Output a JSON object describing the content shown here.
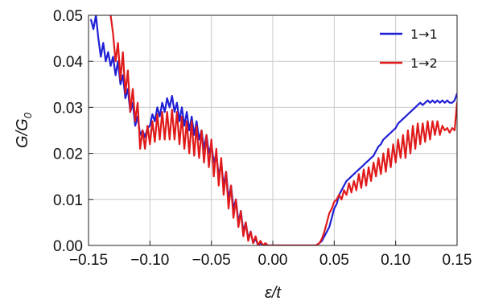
{
  "chart_data": {
    "type": "line",
    "xlabel": "ε/t",
    "ylabel": "G/G",
    "ylabel_subscript": "0",
    "xlim": [
      -0.15,
      0.15
    ],
    "ylim": [
      0.0,
      0.05
    ],
    "x_ticks": [
      -0.15,
      -0.1,
      -0.05,
      0.0,
      0.05,
      0.1,
      0.15
    ],
    "x_tick_labels": [
      "−0.15",
      "−0.10",
      "−0.05",
      "0.00",
      "0.05",
      "0.10",
      "0.15"
    ],
    "y_ticks": [
      0.0,
      0.01,
      0.02,
      0.03,
      0.04,
      0.05
    ],
    "y_tick_labels": [
      "0.00",
      "0.01",
      "0.02",
      "0.03",
      "0.04",
      "0.05"
    ],
    "grid": true,
    "legend_position": "top-right",
    "series": [
      {
        "name": "1→1",
        "color": "#1f1fd6",
        "x": [
          -0.148,
          -0.146,
          -0.144,
          -0.142,
          -0.14,
          -0.138,
          -0.136,
          -0.134,
          -0.132,
          -0.13,
          -0.128,
          -0.126,
          -0.124,
          -0.122,
          -0.12,
          -0.118,
          -0.116,
          -0.114,
          -0.112,
          -0.11,
          -0.108,
          -0.106,
          -0.104,
          -0.102,
          -0.1,
          -0.098,
          -0.096,
          -0.094,
          -0.092,
          -0.09,
          -0.088,
          -0.086,
          -0.084,
          -0.082,
          -0.08,
          -0.078,
          -0.076,
          -0.074,
          -0.072,
          -0.07,
          -0.068,
          -0.066,
          -0.064,
          -0.062,
          -0.06,
          -0.058,
          -0.056,
          -0.054,
          -0.052,
          -0.05,
          -0.048,
          -0.046,
          -0.044,
          -0.042,
          -0.04,
          -0.038,
          -0.036,
          -0.034,
          -0.032,
          -0.03,
          -0.028,
          -0.026,
          -0.024,
          -0.022,
          -0.02,
          -0.018,
          -0.016,
          -0.014,
          -0.012,
          -0.01,
          -0.008,
          -0.006,
          -0.004,
          -0.002,
          0.0,
          0.005,
          0.01,
          0.015,
          0.02,
          0.025,
          0.03,
          0.035,
          0.038,
          0.04,
          0.042,
          0.044,
          0.046,
          0.048,
          0.05,
          0.052,
          0.054,
          0.056,
          0.058,
          0.06,
          0.062,
          0.064,
          0.066,
          0.068,
          0.07,
          0.072,
          0.074,
          0.076,
          0.078,
          0.08,
          0.082,
          0.084,
          0.086,
          0.088,
          0.09,
          0.092,
          0.094,
          0.096,
          0.098,
          0.1,
          0.102,
          0.104,
          0.106,
          0.108,
          0.11,
          0.112,
          0.114,
          0.116,
          0.118,
          0.12,
          0.122,
          0.124,
          0.126,
          0.128,
          0.13,
          0.132,
          0.134,
          0.136,
          0.138,
          0.14,
          0.142,
          0.144,
          0.146,
          0.148,
          0.15
        ],
        "y": [
          0.049,
          0.047,
          0.05,
          0.045,
          0.041,
          0.044,
          0.04,
          0.042,
          0.039,
          0.041,
          0.037,
          0.04,
          0.035,
          0.037,
          0.032,
          0.034,
          0.029,
          0.031,
          0.026,
          0.028,
          0.024,
          0.025,
          0.0235,
          0.0255,
          0.026,
          0.0285,
          0.027,
          0.03,
          0.028,
          0.031,
          0.029,
          0.032,
          0.03,
          0.0325,
          0.029,
          0.031,
          0.027,
          0.03,
          0.026,
          0.029,
          0.025,
          0.028,
          0.024,
          0.027,
          0.023,
          0.025,
          0.021,
          0.024,
          0.02,
          0.022,
          0.018,
          0.02,
          0.015,
          0.018,
          0.013,
          0.016,
          0.01,
          0.013,
          0.008,
          0.01,
          0.005,
          0.0075,
          0.003,
          0.005,
          0.0015,
          0.003,
          0.0005,
          0.0015,
          0.0,
          0.0005,
          0.0,
          0.0,
          0.0,
          0.0,
          0.0,
          0.0,
          0.0,
          0.0,
          0.0,
          0.0,
          0.0,
          0.0,
          0.0005,
          0.001,
          0.002,
          0.003,
          0.004,
          0.006,
          0.008,
          0.009,
          0.011,
          0.012,
          0.013,
          0.014,
          0.0145,
          0.015,
          0.0155,
          0.016,
          0.0165,
          0.017,
          0.0175,
          0.018,
          0.0185,
          0.019,
          0.0195,
          0.0205,
          0.0215,
          0.022,
          0.023,
          0.0235,
          0.024,
          0.0245,
          0.025,
          0.0255,
          0.0265,
          0.027,
          0.0275,
          0.028,
          0.0285,
          0.029,
          0.0295,
          0.03,
          0.0305,
          0.031,
          0.0305,
          0.031,
          0.0315,
          0.031,
          0.0315,
          0.031,
          0.0315,
          0.031,
          0.0315,
          0.031,
          0.0315,
          0.031,
          0.031,
          0.0315,
          0.033
        ]
      },
      {
        "name": "1→2",
        "color": "#e01a1a",
        "x": [
          -0.132,
          -0.13,
          -0.128,
          -0.126,
          -0.124,
          -0.122,
          -0.12,
          -0.118,
          -0.116,
          -0.114,
          -0.112,
          -0.11,
          -0.108,
          -0.106,
          -0.104,
          -0.102,
          -0.1,
          -0.098,
          -0.096,
          -0.094,
          -0.092,
          -0.09,
          -0.088,
          -0.086,
          -0.084,
          -0.082,
          -0.08,
          -0.078,
          -0.076,
          -0.074,
          -0.072,
          -0.07,
          -0.068,
          -0.066,
          -0.064,
          -0.062,
          -0.06,
          -0.058,
          -0.056,
          -0.054,
          -0.052,
          -0.05,
          -0.048,
          -0.046,
          -0.044,
          -0.042,
          -0.04,
          -0.038,
          -0.036,
          -0.034,
          -0.032,
          -0.03,
          -0.028,
          -0.026,
          -0.024,
          -0.022,
          -0.02,
          -0.018,
          -0.016,
          -0.014,
          -0.012,
          -0.01,
          -0.008,
          -0.006,
          -0.004,
          -0.002,
          0.0,
          0.005,
          0.01,
          0.015,
          0.02,
          0.025,
          0.03,
          0.035,
          0.038,
          0.04,
          0.042,
          0.044,
          0.046,
          0.048,
          0.05,
          0.052,
          0.054,
          0.056,
          0.058,
          0.06,
          0.062,
          0.064,
          0.066,
          0.068,
          0.07,
          0.072,
          0.074,
          0.076,
          0.078,
          0.08,
          0.082,
          0.084,
          0.086,
          0.088,
          0.09,
          0.092,
          0.094,
          0.096,
          0.098,
          0.1,
          0.102,
          0.104,
          0.106,
          0.108,
          0.11,
          0.112,
          0.114,
          0.116,
          0.118,
          0.12,
          0.122,
          0.124,
          0.126,
          0.128,
          0.13,
          0.132,
          0.134,
          0.136,
          0.138,
          0.14,
          0.142,
          0.144,
          0.146,
          0.148,
          0.15
        ],
        "y": [
          0.05,
          0.046,
          0.04,
          0.044,
          0.036,
          0.042,
          0.033,
          0.038,
          0.029,
          0.034,
          0.027,
          0.031,
          0.021,
          0.025,
          0.021,
          0.026,
          0.022,
          0.027,
          0.0225,
          0.0285,
          0.023,
          0.029,
          0.023,
          0.029,
          0.023,
          0.0295,
          0.023,
          0.029,
          0.022,
          0.028,
          0.021,
          0.027,
          0.02,
          0.027,
          0.0195,
          0.026,
          0.019,
          0.025,
          0.018,
          0.024,
          0.017,
          0.023,
          0.015,
          0.021,
          0.013,
          0.019,
          0.011,
          0.016,
          0.008,
          0.013,
          0.006,
          0.01,
          0.004,
          0.0075,
          0.002,
          0.005,
          0.001,
          0.003,
          0.0005,
          0.002,
          0.0,
          0.001,
          0.0,
          0.0005,
          0.0,
          0.0,
          0.0,
          0.0,
          0.0,
          0.0,
          0.0,
          0.0,
          0.0,
          0.0,
          0.0005,
          0.0015,
          0.003,
          0.005,
          0.007,
          0.008,
          0.0095,
          0.01,
          0.011,
          0.01,
          0.012,
          0.011,
          0.0135,
          0.0115,
          0.014,
          0.012,
          0.0155,
          0.0125,
          0.0165,
          0.013,
          0.017,
          0.014,
          0.018,
          0.015,
          0.019,
          0.0155,
          0.02,
          0.016,
          0.021,
          0.017,
          0.022,
          0.018,
          0.023,
          0.019,
          0.024,
          0.019,
          0.025,
          0.02,
          0.026,
          0.021,
          0.0265,
          0.022,
          0.0265,
          0.0225,
          0.027,
          0.023,
          0.027,
          0.024,
          0.027,
          0.024,
          0.026,
          0.025,
          0.0255,
          0.0245,
          0.0255,
          0.025,
          0.031
        ]
      }
    ]
  }
}
